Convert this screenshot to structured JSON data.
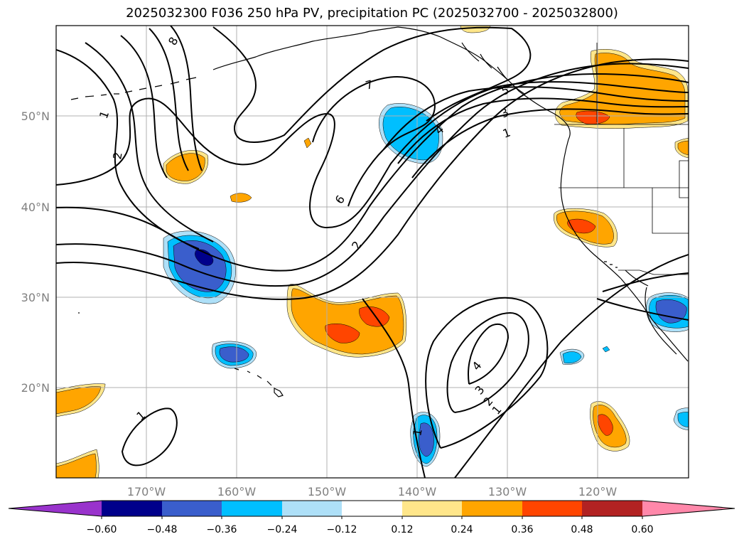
{
  "title": "2025032300 F036 250 hPa PV, precipitation PC (2025032700 - 2025032800)",
  "colors": {
    "neg_060": "#9933cc",
    "neg_048": "#00008b",
    "neg_036": "#3a5ecc",
    "neg_024": "#00bfff",
    "neg_012": "#aee0f8",
    "zero": "#ffffff",
    "pos_012": "#ffe68a",
    "pos_024": "#ffa500",
    "pos_036": "#ff4500",
    "pos_048": "#b22222",
    "pos_060": "#ff88aa",
    "contour": "#000000",
    "grid": "#b0b0b0",
    "coast": "#000000"
  },
  "lat_labels": [
    "50°N",
    "40°N",
    "30°N",
    "20°N"
  ],
  "lon_labels": [
    "170°W",
    "160°W",
    "150°W",
    "140°W",
    "130°W",
    "120°W"
  ],
  "colorbar": {
    "ticks": [
      "−0.60",
      "−0.48",
      "−0.36",
      "−0.24",
      "−0.12",
      "0.12",
      "0.24",
      "0.36",
      "0.48",
      "0.60"
    ]
  },
  "contour_labels": [
    "8",
    "7",
    "6",
    "5",
    "4",
    "3",
    "2",
    "1",
    "1",
    "2",
    "1",
    "2",
    "3",
    "4",
    "1",
    "1",
    "2",
    "3",
    "4"
  ]
}
